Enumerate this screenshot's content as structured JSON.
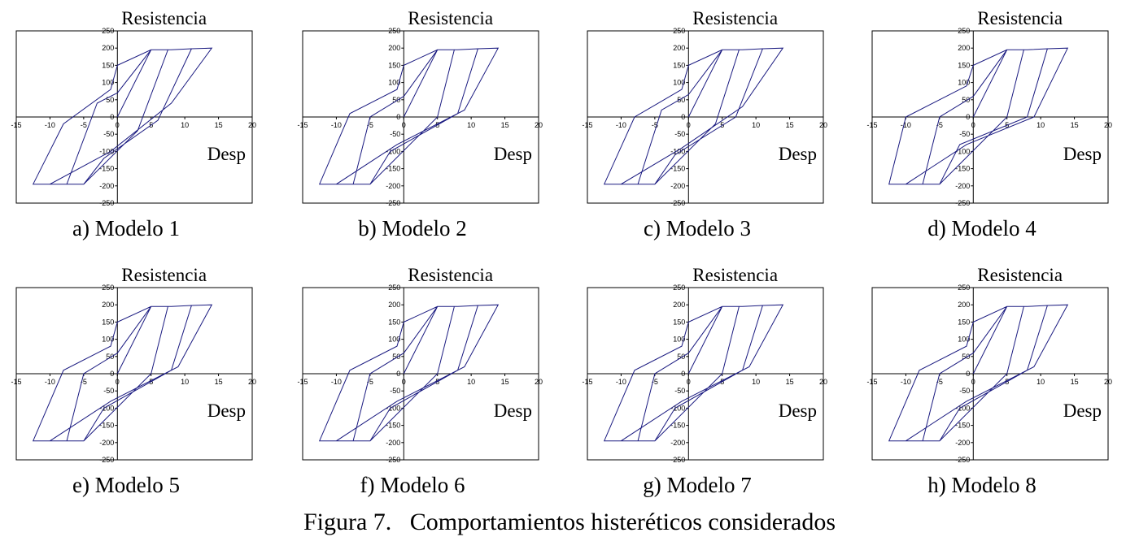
{
  "figure_caption": "Figura 7.   Comportamientos histeréticos considerados",
  "line_color": "#1a1a80",
  "chart_data": [
    {
      "type": "line",
      "caption": "a) Modelo 1",
      "ylabel": "Resistencia",
      "xlabel": "Desp",
      "xlim": [
        -15,
        20
      ],
      "ylim": [
        -250,
        250
      ],
      "xticks": [
        -15,
        -10,
        -5,
        0,
        5,
        10,
        15,
        20
      ],
      "yticks": [
        -250,
        -200,
        -150,
        -100,
        -50,
        0,
        50,
        100,
        150,
        200,
        250
      ],
      "x": [
        0,
        5,
        7.5,
        3,
        -5,
        -7.5,
        -3,
        0,
        5,
        8,
        11,
        6,
        -2,
        -5,
        -10,
        -12.5,
        -8,
        -1,
        0,
        5,
        8,
        11,
        14,
        8,
        -1,
        -10,
        -12.5
      ],
      "y": [
        0,
        195,
        195,
        -40,
        -195,
        -195,
        40,
        70,
        195,
        195,
        198,
        -10,
        -120,
        -195,
        -195,
        -195,
        -20,
        80,
        150,
        195,
        195,
        198,
        200,
        40,
        -100,
        -195,
        -195
      ]
    },
    {
      "type": "line",
      "caption": "b) Modelo 2",
      "ylabel": "Resistencia",
      "xlabel": "Desp",
      "xlim": [
        -15,
        20
      ],
      "ylim": [
        -250,
        250
      ],
      "xticks": [
        -15,
        -10,
        -5,
        0,
        5,
        10,
        15,
        20
      ],
      "yticks": [
        -250,
        -200,
        -150,
        -100,
        -50,
        0,
        50,
        100,
        150,
        200,
        250
      ],
      "x": [
        0,
        5,
        7.5,
        5,
        -5,
        -7.5,
        -5,
        0,
        5,
        8,
        11,
        8,
        -2,
        -5,
        -10,
        -12.5,
        -8,
        -1,
        0,
        5,
        8,
        11,
        14,
        9,
        -1,
        -10,
        -12.5
      ],
      "y": [
        0,
        195,
        195,
        0,
        -195,
        -195,
        0,
        60,
        195,
        195,
        198,
        10,
        -100,
        -195,
        -195,
        -195,
        10,
        80,
        150,
        195,
        195,
        198,
        200,
        20,
        -80,
        -195,
        -195
      ]
    },
    {
      "type": "line",
      "caption": "c) Modelo 3",
      "ylabel": "Resistencia",
      "xlabel": "Desp",
      "xlim": [
        -15,
        20
      ],
      "ylim": [
        -250,
        250
      ],
      "xticks": [
        -15,
        -10,
        -5,
        0,
        5,
        10,
        15,
        20
      ],
      "yticks": [
        -250,
        -200,
        -150,
        -100,
        -50,
        0,
        50,
        100,
        150,
        200,
        250
      ],
      "x": [
        0,
        5,
        7.5,
        4,
        -5,
        -7.5,
        -4,
        0,
        5,
        8,
        11,
        7,
        -2,
        -5,
        -10,
        -12.5,
        -8,
        -1,
        0,
        5,
        8,
        11,
        14,
        8,
        -1,
        -10,
        -12.5
      ],
      "y": [
        0,
        195,
        195,
        -20,
        -195,
        -195,
        20,
        65,
        195,
        195,
        198,
        0,
        -110,
        -195,
        -195,
        -195,
        0,
        80,
        150,
        195,
        195,
        198,
        200,
        30,
        -90,
        -195,
        -195
      ]
    },
    {
      "type": "line",
      "caption": "d) Modelo 4",
      "ylabel": "Resistencia",
      "xlabel": "Desp",
      "xlim": [
        -15,
        20
      ],
      "ylim": [
        -250,
        250
      ],
      "xticks": [
        -15,
        -10,
        -5,
        0,
        5,
        10,
        15,
        20
      ],
      "yticks": [
        -250,
        -200,
        -150,
        -100,
        -50,
        0,
        50,
        100,
        150,
        200,
        250
      ],
      "x": [
        0,
        5,
        7.5,
        5,
        -5,
        -7.5,
        -5,
        0,
        5,
        8,
        11,
        8,
        -2,
        -5,
        -10,
        -12.5,
        -10,
        -1,
        0,
        5,
        8,
        11,
        14,
        9,
        -1,
        -10,
        -12.5
      ],
      "y": [
        0,
        195,
        195,
        0,
        -195,
        -195,
        0,
        60,
        195,
        195,
        198,
        0,
        -80,
        -195,
        -195,
        -195,
        0,
        90,
        150,
        195,
        195,
        198,
        200,
        0,
        -80,
        -195,
        -195
      ]
    },
    {
      "type": "line",
      "caption": "e) Modelo 5",
      "ylabel": "Resistencia",
      "xlabel": "Desp",
      "xlim": [
        -15,
        20
      ],
      "ylim": [
        -250,
        250
      ],
      "xticks": [
        -15,
        -10,
        -5,
        0,
        5,
        10,
        15,
        20
      ],
      "yticks": [
        -250,
        -200,
        -150,
        -100,
        -50,
        0,
        50,
        100,
        150,
        200,
        250
      ],
      "x": [
        0,
        5,
        7.5,
        5,
        -5,
        -7.5,
        -5,
        0,
        5,
        8,
        11,
        8,
        -2,
        -5,
        -10,
        -12.5,
        -8,
        -1,
        0,
        5,
        8,
        11,
        14,
        9,
        -1,
        -10,
        -12.5
      ],
      "y": [
        0,
        195,
        195,
        0,
        -195,
        -195,
        0,
        60,
        195,
        195,
        198,
        10,
        -100,
        -195,
        -195,
        -195,
        10,
        80,
        150,
        195,
        195,
        198,
        200,
        20,
        -80,
        -195,
        -195
      ]
    },
    {
      "type": "line",
      "caption": "f) Modelo 6",
      "ylabel": "Resistencia",
      "xlabel": "Desp",
      "xlim": [
        -15,
        20
      ],
      "ylim": [
        -250,
        250
      ],
      "xticks": [
        -15,
        -10,
        -5,
        0,
        5,
        10,
        15,
        20
      ],
      "yticks": [
        -250,
        -200,
        -150,
        -100,
        -50,
        0,
        50,
        100,
        150,
        200,
        250
      ],
      "x": [
        0,
        5,
        7.5,
        5,
        -5,
        -7.5,
        -5,
        0,
        5,
        8,
        11,
        8,
        -2,
        -5,
        -10,
        -12.5,
        -8,
        -1,
        0,
        5,
        8,
        11,
        14,
        9,
        -1,
        -10,
        -12.5
      ],
      "y": [
        0,
        195,
        195,
        0,
        -195,
        -195,
        0,
        60,
        195,
        195,
        198,
        10,
        -100,
        -195,
        -195,
        -195,
        10,
        80,
        150,
        195,
        195,
        198,
        200,
        20,
        -80,
        -195,
        -195
      ]
    },
    {
      "type": "line",
      "caption": "g) Modelo 7",
      "ylabel": "Resistencia",
      "xlabel": "Desp",
      "xlim": [
        -15,
        20
      ],
      "ylim": [
        -250,
        250
      ],
      "xticks": [
        -15,
        -10,
        -5,
        0,
        5,
        10,
        15,
        20
      ],
      "yticks": [
        -250,
        -200,
        -150,
        -100,
        -50,
        0,
        50,
        100,
        150,
        200,
        250
      ],
      "x": [
        0,
        5,
        7.5,
        5,
        -5,
        -7.5,
        -5,
        0,
        5,
        8,
        11,
        8,
        -2,
        -5,
        -10,
        -12.5,
        -8,
        -1,
        0,
        5,
        8,
        11,
        14,
        9,
        -1,
        -10,
        -12.5
      ],
      "y": [
        0,
        195,
        195,
        0,
        -195,
        -195,
        0,
        60,
        195,
        195,
        198,
        10,
        -100,
        -195,
        -195,
        -195,
        10,
        80,
        150,
        195,
        195,
        198,
        200,
        20,
        -80,
        -195,
        -195
      ]
    },
    {
      "type": "line",
      "caption": "h) Modelo 8",
      "ylabel": "Resistencia",
      "xlabel": "Desp",
      "xlim": [
        -15,
        20
      ],
      "ylim": [
        -250,
        250
      ],
      "xticks": [
        -15,
        -10,
        -5,
        0,
        5,
        10,
        15,
        20
      ],
      "yticks": [
        -250,
        -200,
        -150,
        -100,
        -50,
        0,
        50,
        100,
        150,
        200,
        250
      ],
      "x": [
        0,
        5,
        7.5,
        5,
        -5,
        -7.5,
        -5,
        0,
        5,
        8,
        11,
        8,
        -2,
        -5,
        -10,
        -12.5,
        -8,
        -1,
        0,
        5,
        8,
        11,
        14,
        9,
        -1,
        -10,
        -12.5
      ],
      "y": [
        0,
        195,
        195,
        0,
        -195,
        -195,
        0,
        60,
        195,
        195,
        198,
        10,
        -100,
        -195,
        -195,
        -195,
        10,
        80,
        150,
        195,
        195,
        198,
        200,
        20,
        -80,
        -195,
        -195
      ]
    }
  ]
}
